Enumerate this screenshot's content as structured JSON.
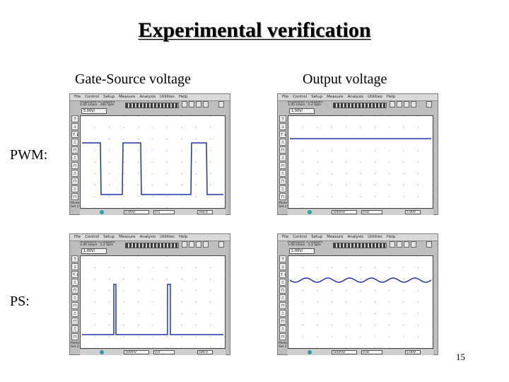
{
  "slide": {
    "title": "Experimental verification",
    "column_headers": [
      "Gate-Source voltage",
      "Output voltage"
    ],
    "row_labels": [
      "PWM:",
      "PS:"
    ],
    "page_number": "15"
  },
  "scope_ui": {
    "menu_items": [
      "File",
      "Control",
      "Setup",
      "Measure",
      "Analysis",
      "Utilities",
      "Help"
    ],
    "left_buttons": [
      "↑",
      "↓",
      "↑↓",
      "⎍",
      "⊓",
      "⎍",
      "⊓",
      "⎍",
      "⊓",
      "⎍",
      "⊓"
    ],
    "side_label_1": "Mode Set 2",
    "side_label_2": "Clear Ink"
  },
  "screens": [
    {
      "id": "pwm-gate-source",
      "info_text": "Acquisition is stopped.\n1.00 GSa/s   200 Spts",
      "scale_value": "5.00V/",
      "bottom_values": [
        "5.00V/",
        "0.0",
        "500.0"
      ],
      "trace_color": "#2233aa",
      "waveform": "pwm-square"
    },
    {
      "id": "pwm-output",
      "info_text": "Acquisition is stopped.\n1.00 GSa/s   5.2 Spts",
      "scale_value": "1.00V/",
      "bottom_values": [
        "500mV/",
        "0.0s",
        "5.00V"
      ],
      "trace_color": "#2233aa",
      "waveform": "flat-dc"
    },
    {
      "id": "ps-gate-source",
      "info_text": "Acquisition is stopped.\n1.00 GSa/s   5.2 Spts",
      "scale_value": "1.00V/",
      "bottom_values": [
        "100mV",
        "0.0",
        "500.0"
      ],
      "trace_color": "#2233aa",
      "waveform": "ps-pulses"
    },
    {
      "id": "ps-output",
      "info_text": "Acquisition is stopped.\n1.00 GSa/s   5.2 Spts",
      "scale_value": "1.00V/",
      "bottom_values": [
        "500mV/",
        "0.0s",
        "5.00V"
      ],
      "trace_color": "#2233aa",
      "waveform": "ripple-dc"
    }
  ]
}
